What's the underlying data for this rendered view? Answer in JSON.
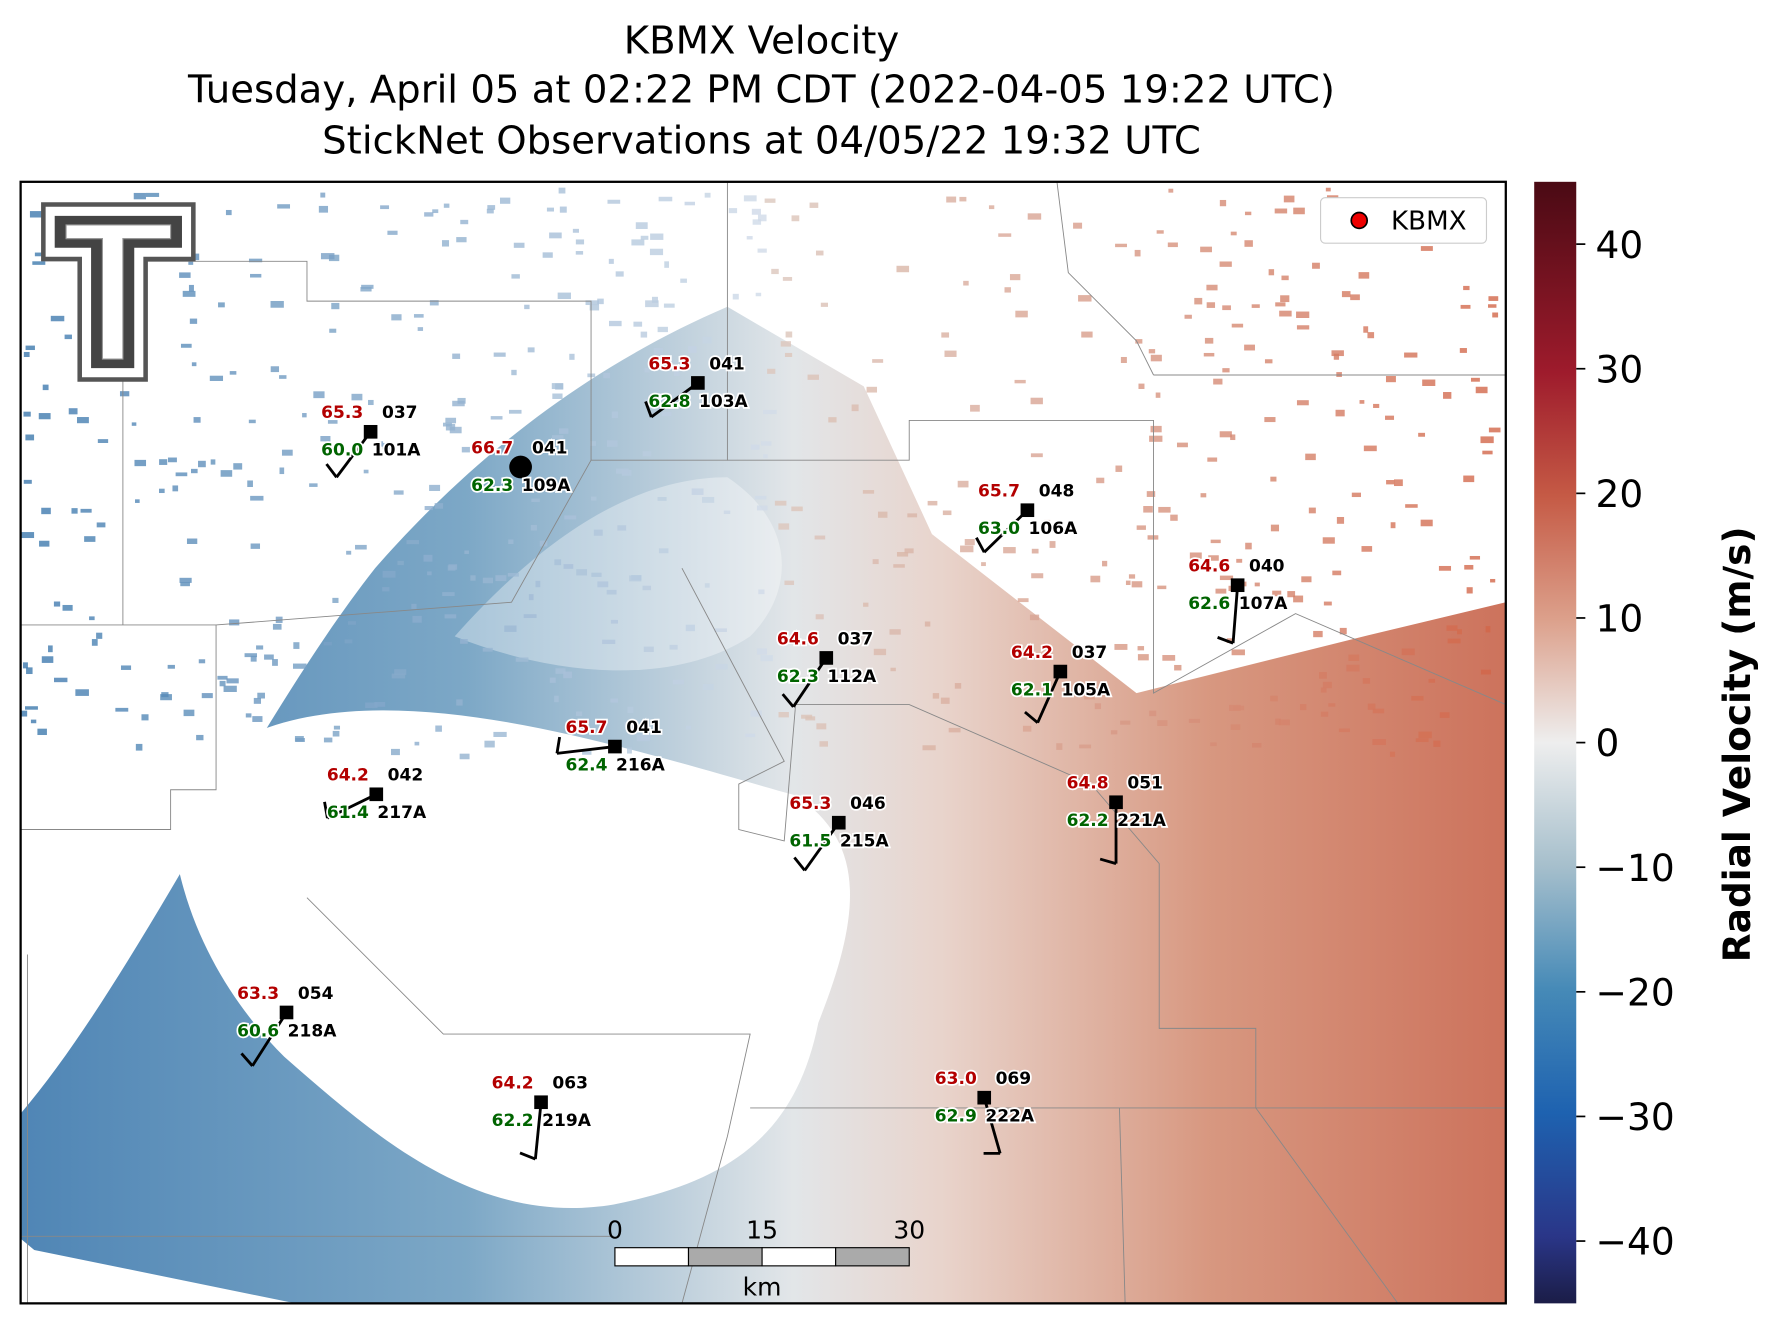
{
  "title_lines": [
    "KBMX Velocity",
    "Tuesday, April 05 at 02:22 PM CDT (2022-04-05 19:22 UTC)",
    "StickNet Observations at 04/05/22 19:32 UTC"
  ],
  "map": {
    "legend": "KBMX",
    "stations": [
      {
        "id": "101A",
        "temperature": "65.3",
        "code": "037",
        "dewpoint": "60.0"
      },
      {
        "id": "109A",
        "temperature": "66.7",
        "code": "041",
        "dewpoint": "62.3"
      },
      {
        "id": "103A",
        "temperature": "65.3",
        "code": "041",
        "dewpoint": "62.8"
      },
      {
        "id": "106A",
        "temperature": "65.7",
        "code": "048",
        "dewpoint": "63.0"
      },
      {
        "id": "107A",
        "temperature": "64.6",
        "code": "040",
        "dewpoint": "62.6"
      },
      {
        "id": "112A",
        "temperature": "64.6",
        "code": "037",
        "dewpoint": "62.3"
      },
      {
        "id": "105A",
        "temperature": "64.2",
        "code": "037",
        "dewpoint": "62.1"
      },
      {
        "id": "216A",
        "temperature": "65.7",
        "code": "041",
        "dewpoint": "62.4"
      },
      {
        "id": "217A",
        "temperature": "64.2",
        "code": "042",
        "dewpoint": "61.4"
      },
      {
        "id": "215A",
        "temperature": "65.3",
        "code": "046",
        "dewpoint": "61.5"
      },
      {
        "id": "221A",
        "temperature": "64.8",
        "code": "051",
        "dewpoint": "62.2"
      },
      {
        "id": "218A",
        "temperature": "63.3",
        "code": "054",
        "dewpoint": "60.6"
      },
      {
        "id": "219A",
        "temperature": "64.2",
        "code": "063",
        "dewpoint": "62.2"
      },
      {
        "id": "222A",
        "temperature": "63.0",
        "code": "069",
        "dewpoint": "62.9"
      }
    ],
    "scale_bar": {
      "range": [
        0,
        30
      ],
      "ticks": [
        0,
        15,
        30
      ],
      "unit": "km"
    }
  },
  "colorbar": {
    "label": "Radial Velocity (m/s)",
    "range": [
      -45,
      45
    ],
    "ticks": [
      40,
      30,
      20,
      10,
      0,
      {
        "value": -10,
        "label": "−10"
      },
      {
        "value": -20,
        "label": "−20"
      },
      {
        "value": -30,
        "label": "−30"
      },
      {
        "value": -40,
        "label": "−40"
      }
    ]
  }
}
